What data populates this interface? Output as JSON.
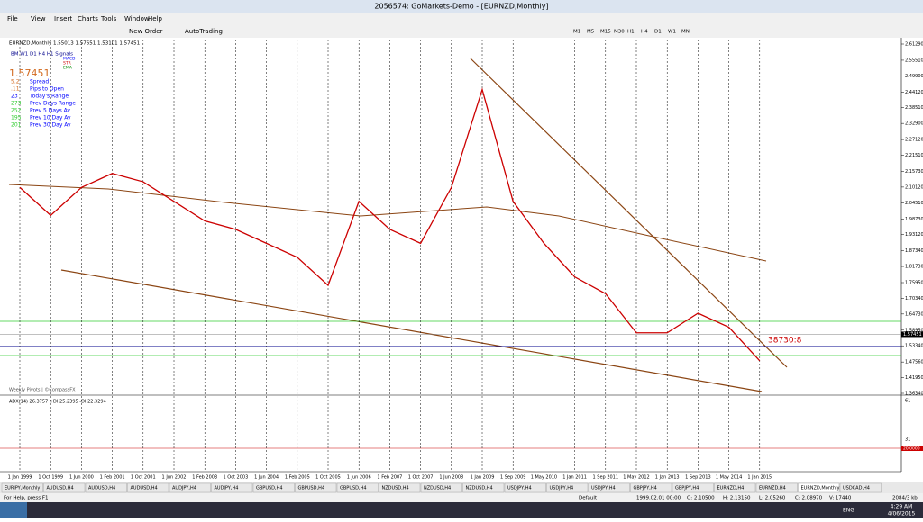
{
  "window": {
    "title": "2056574: GoMarkets-Demo - [EURNZD,Monthly]"
  },
  "menu": [
    "File",
    "View",
    "Insert",
    "Charts",
    "Tools",
    "Window",
    "Help"
  ],
  "toolbar": {
    "buttons": [
      "New Order",
      "AutoTrading"
    ],
    "timeframes": [
      "M1",
      "M5",
      "M15",
      "M30",
      "H1",
      "H4",
      "D1",
      "W1",
      "MN"
    ]
  },
  "chart": {
    "header": "EURNZD,Monthly 1.55013 1.57651 1.53101 1.57451",
    "signals_header": "BM W1 D1 H4 H1 Signals",
    "legend": [
      "MACD",
      "STR",
      "EMA"
    ],
    "price": "1.57451",
    "stats": [
      {
        "value": "5.2",
        "label": "Spread"
      },
      {
        "value": ".11",
        "label": "Pips to Open"
      },
      {
        "value": "23",
        "label": "Today's Range"
      },
      {
        "value": "273",
        "label": "Prev Days Range"
      },
      {
        "value": "252",
        "label": "Prev 5 Days Av"
      },
      {
        "value": "195",
        "label": "Prev 10 Day Av"
      },
      {
        "value": "201",
        "label": "Prev 30 Day Av"
      }
    ],
    "pivots_note": "Weekly Pivots | ©CompassFX",
    "annotation": "38730:8",
    "ylim": [
      1.3634,
      2.6129
    ],
    "yticks": [
      {
        "value": 2.6129,
        "label": "2.61290"
      },
      {
        "value": 2.5551,
        "label": "2.55510"
      },
      {
        "value": 2.499,
        "label": "2.49900"
      },
      {
        "value": 2.4412,
        "label": "2.44120"
      },
      {
        "value": 2.3851,
        "label": "2.38510"
      },
      {
        "value": 2.329,
        "label": "2.32900"
      },
      {
        "value": 2.2712,
        "label": "2.27120"
      },
      {
        "value": 2.2151,
        "label": "2.21510"
      },
      {
        "value": 2.1573,
        "label": "2.15730"
      },
      {
        "value": 2.1012,
        "label": "2.10120"
      },
      {
        "value": 2.0451,
        "label": "2.04510"
      },
      {
        "value": 1.9873,
        "label": "1.98730"
      },
      {
        "value": 1.9312,
        "label": "1.93120"
      },
      {
        "value": 1.8734,
        "label": "1.87340"
      },
      {
        "value": 1.8173,
        "label": "1.81730"
      },
      {
        "value": 1.7595,
        "label": "1.75950"
      },
      {
        "value": 1.7034,
        "label": "1.70340"
      },
      {
        "value": 1.6473,
        "label": "1.64730"
      },
      {
        "value": 1.5895,
        "label": "1.58950"
      },
      {
        "value": 1.5334,
        "label": "1.53340"
      },
      {
        "value": 1.4756,
        "label": "1.47560"
      },
      {
        "value": 1.4195,
        "label": "1.41950"
      },
      {
        "value": 1.3634,
        "label": "1.36340"
      }
    ],
    "current_price": {
      "value": 1.57451,
      "label": "1.57451"
    },
    "dates": [
      "1 Jan 1999",
      "1 Oct 1999",
      "1 Jun 2000",
      "1 Feb 2001",
      "1 Oct 2001",
      "1 Jun 2002",
      "1 Feb 2003",
      "1 Oct 2003",
      "1 Jun 2004",
      "1 Feb 2005",
      "1 Oct 2005",
      "1 Jun 2006",
      "1 Feb 2007",
      "1 Oct 2007",
      "1 Jun 2008",
      "1 Jan 2009",
      "1 Sep 2009",
      "1 May 2010",
      "1 Jan 2011",
      "1 Sep 2011",
      "1 May 2012",
      "1 Jan 2013",
      "1 Sep 2013",
      "1 May 2014",
      "1 Jan 2015"
    ],
    "closes": [
      2.1,
      2.0,
      2.1,
      2.15,
      2.12,
      2.05,
      1.98,
      1.95,
      1.9,
      1.85,
      1.75,
      2.05,
      1.95,
      1.9,
      2.1,
      2.45,
      2.05,
      1.9,
      1.78,
      1.72,
      1.58,
      1.58,
      1.65,
      1.6,
      1.48
    ]
  },
  "indicator": {
    "label": "ADX(14) 26.3757 +DI:25.2395 -DI:22.3294",
    "ticks": [
      "61",
      "31"
    ],
    "level": "20.0000"
  },
  "tabs": [
    "EURJPY,Monthly",
    "AUDUSD,H4",
    "AUDUSD,H4",
    "AUDUSD,H4",
    "AUDJPY,H4",
    "AUDJPY,H4",
    "GBPUSD,H4",
    "GBPUSD,H4",
    "GBPUSD,H4",
    "NZDUSD,H4",
    "NZDUSD,H4",
    "NZDUSD,H4",
    "USDJPY,H4",
    "USDJPY,H4",
    "USDJPY,H4",
    "GBPJPY,H4",
    "GBPJPY,H4",
    "EURNZD,H4",
    "EURNZD,H4",
    "EURNZD,Monthly",
    "USDCAD,H4"
  ],
  "status": [
    "For Help, press F1",
    "Default",
    "1999.02.01 00:00",
    "O: 2.10500",
    "H: 2.13150",
    "L: 2.05260",
    "C: 2.08970",
    "V: 17440",
    "2084/3 kb"
  ],
  "taskbar": {
    "lang": "ENG",
    "time": "4:29 AM",
    "date": "4/06/2015"
  }
}
